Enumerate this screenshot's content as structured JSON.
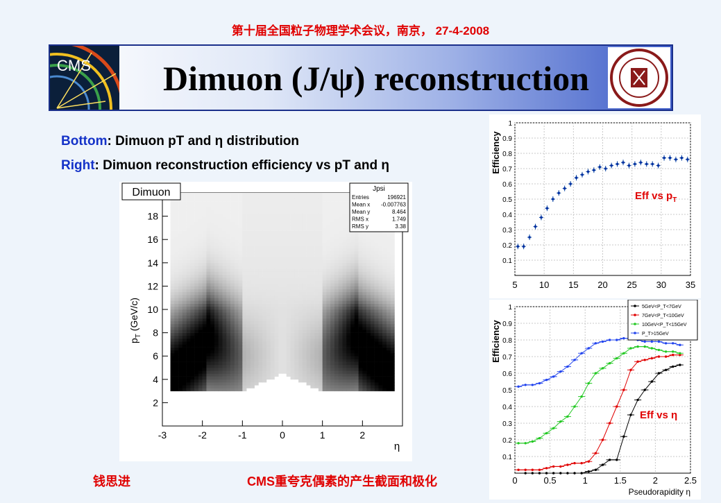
{
  "header": {
    "conference": "第十届全国粒子物理学术会议，南京， 27-4-2008",
    "title": "Dimuon (J/ψ) reconstruction",
    "left_logo_text": "CMS"
  },
  "description": {
    "bottom_label": "Bottom",
    "bottom_text": ": Dimuon pT and η distribution",
    "right_label": "Right",
    "right_text": ":    Dimuon reconstruction efficiency vs pT and η"
  },
  "annotations": {
    "eff_pt_label": "Eff vs p",
    "eff_pt_sub": "T",
    "eff_eta_label": "Eff vs η"
  },
  "footer": {
    "author": "钱思进",
    "topic": "CMS重夸克偶素的产生截面和极化"
  },
  "chart_data": [
    {
      "type": "heatmap",
      "title": "Dimuon",
      "xlabel": "η",
      "ylabel": "p",
      "ylabel_sub": "T",
      "ylabel_unit": " (GeV/c)",
      "xlim": [
        -3,
        3
      ],
      "ylim": [
        0,
        20
      ],
      "xticks": [
        -3,
        -2,
        -1,
        0,
        1,
        2
      ],
      "yticks": [
        2,
        4,
        6,
        8,
        10,
        12,
        14,
        16,
        18
      ],
      "stats": {
        "name": "Jpsi",
        "rows": [
          [
            "Entries",
            "196921"
          ],
          [
            "Mean x",
            "-0.007763"
          ],
          [
            "Mean y",
            "8.464"
          ],
          [
            "RMS x",
            "1.749"
          ],
          [
            "RMS y",
            "3.38"
          ]
        ]
      }
    },
    {
      "type": "scatter",
      "xlabel": "",
      "ylabel": "Efficiency",
      "xlim": [
        5,
        35
      ],
      "ylim": [
        0,
        1
      ],
      "xticks": [
        5,
        10,
        15,
        20,
        25,
        30,
        35
      ],
      "yticks": [
        0.1,
        0.2,
        0.3,
        0.4,
        0.5,
        0.6,
        0.7,
        0.8,
        0.9,
        1
      ],
      "x": [
        5.5,
        6.5,
        7.5,
        8.5,
        9.5,
        10.5,
        11.5,
        12.5,
        13.5,
        14.5,
        15.5,
        16.5,
        17.5,
        18.5,
        19.5,
        20.5,
        21.5,
        22.5,
        23.5,
        24.5,
        25.5,
        26.5,
        27.5,
        28.5,
        29.5,
        30.5,
        31.5,
        32.5,
        33.5,
        34.5
      ],
      "y": [
        0.19,
        0.19,
        0.25,
        0.32,
        0.38,
        0.44,
        0.5,
        0.54,
        0.57,
        0.6,
        0.64,
        0.66,
        0.68,
        0.69,
        0.71,
        0.7,
        0.72,
        0.73,
        0.74,
        0.72,
        0.73,
        0.74,
        0.73,
        0.73,
        0.72,
        0.77,
        0.77,
        0.76,
        0.77,
        0.76
      ]
    },
    {
      "type": "line",
      "xlabel": "Pseudorapidity η",
      "ylabel": "Efficiency",
      "xlim": [
        0,
        2.5
      ],
      "ylim": [
        0,
        1
      ],
      "xticks": [
        0,
        0.5,
        1,
        1.5,
        2,
        2.5
      ],
      "yticks": [
        0.1,
        0.2,
        0.3,
        0.4,
        0.5,
        0.6,
        0.7,
        0.8,
        0.9,
        1
      ],
      "legend_position": "top-right",
      "x": [
        0.05,
        0.15,
        0.25,
        0.35,
        0.45,
        0.55,
        0.65,
        0.75,
        0.85,
        0.95,
        1.05,
        1.15,
        1.25,
        1.35,
        1.45,
        1.55,
        1.65,
        1.75,
        1.85,
        1.95,
        2.05,
        2.15,
        2.25,
        2.35
      ],
      "series": [
        {
          "name": "5GeV<P_T<7GeV",
          "color": "#000000",
          "values": [
            null,
            0.0,
            0.0,
            0.0,
            0.0,
            0.0,
            0.0,
            0.0,
            0.0,
            0.0,
            0.01,
            0.02,
            0.05,
            0.08,
            0.08,
            0.22,
            0.35,
            0.44,
            0.5,
            0.55,
            0.6,
            0.62,
            0.64,
            0.65
          ]
        },
        {
          "name": "7GeV<P_T<10GeV",
          "color": "#e00000",
          "values": [
            0.02,
            0.02,
            0.02,
            0.02,
            0.03,
            0.04,
            0.04,
            0.05,
            0.06,
            0.06,
            0.07,
            0.12,
            0.2,
            0.3,
            0.4,
            0.5,
            0.62,
            0.67,
            0.68,
            0.69,
            0.7,
            0.7,
            0.71,
            0.71
          ]
        },
        {
          "name": "10GeV<P_T<15GeV",
          "color": "#22c822",
          "values": [
            0.18,
            0.18,
            0.19,
            0.21,
            0.24,
            0.27,
            0.31,
            0.34,
            0.4,
            0.46,
            0.54,
            0.6,
            0.63,
            0.66,
            0.69,
            0.72,
            0.75,
            0.76,
            0.76,
            0.75,
            0.74,
            0.73,
            0.73,
            0.72
          ]
        },
        {
          "name": "P_T>15GeV",
          "color": "#2244ee",
          "values": [
            0.52,
            0.53,
            0.53,
            0.54,
            0.56,
            0.58,
            0.61,
            0.64,
            0.68,
            0.72,
            0.75,
            0.78,
            0.79,
            0.8,
            0.8,
            0.81,
            0.81,
            0.8,
            0.79,
            0.79,
            0.79,
            0.78,
            0.78,
            0.77
          ]
        }
      ]
    }
  ]
}
